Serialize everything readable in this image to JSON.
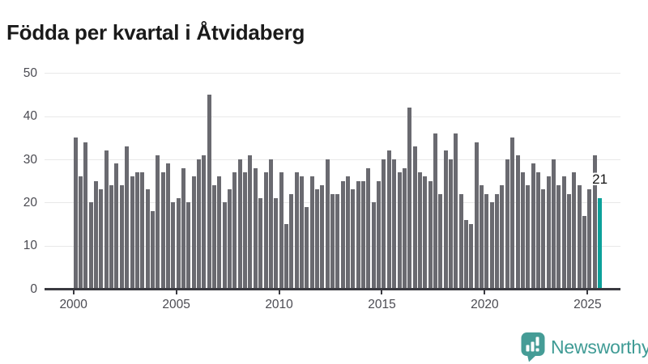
{
  "title": "Födda per kvartal i Åtvidaberg",
  "annotation": {
    "label": "21"
  },
  "footer": {
    "brand": "Newsworthy"
  },
  "colors": {
    "bar": "#6a6a70",
    "highlight": "#0ca19a",
    "grid": "#e8e8e8",
    "axis": "#3a3a40",
    "tick_label": "#4b4b52",
    "title": "#1a1a1a",
    "logo_icon": "#459c96",
    "logo_text": "#3f9b95"
  },
  "chart_data": {
    "type": "bar",
    "title": "Födda per kvartal i Åtvidaberg",
    "xlabel": "",
    "ylabel": "",
    "start_year": 2000,
    "start_quarter": 1,
    "end_year": 2025,
    "end_quarter": 3,
    "x_tick_years": [
      2000,
      2005,
      2010,
      2015,
      2020,
      2025
    ],
    "x_tick_labels": [
      "2000",
      "2005",
      "2010",
      "2015",
      "2020",
      "2025"
    ],
    "y_ticks": [
      0,
      10,
      20,
      30,
      40,
      50
    ],
    "ylim": [
      0,
      50
    ],
    "grid": true,
    "legend": false,
    "highlight_last_bar": true,
    "highlight_label": "21",
    "values": [
      35,
      26,
      34,
      20,
      25,
      23,
      32,
      24,
      29,
      24,
      33,
      26,
      27,
      27,
      23,
      18,
      31,
      27,
      29,
      20,
      21,
      28,
      20,
      26,
      30,
      31,
      45,
      24,
      26,
      20,
      23,
      27,
      30,
      27,
      31,
      28,
      21,
      27,
      30,
      21,
      27,
      15,
      22,
      27,
      26,
      19,
      26,
      23,
      24,
      30,
      22,
      22,
      25,
      26,
      23,
      25,
      25,
      28,
      20,
      25,
      30,
      32,
      30,
      27,
      28,
      42,
      33,
      27,
      26,
      25,
      36,
      22,
      32,
      30,
      36,
      22,
      16,
      15,
      34,
      24,
      22,
      20,
      22,
      24,
      30,
      35,
      31,
      27,
      24,
      29,
      27,
      23,
      26,
      30,
      24,
      26,
      22,
      27,
      24,
      17,
      23,
      31,
      21
    ]
  }
}
